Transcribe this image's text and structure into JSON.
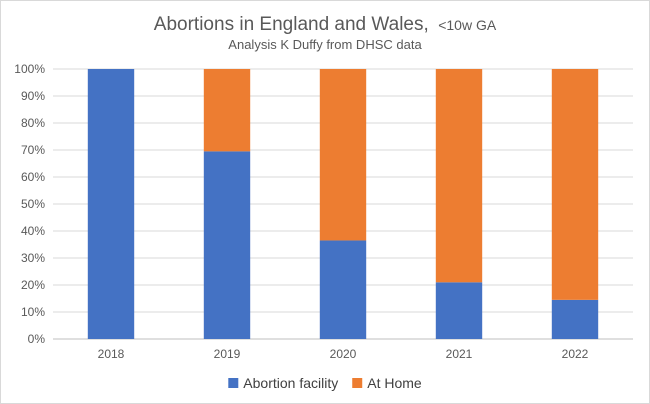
{
  "chart_data": {
    "type": "bar",
    "stacked": true,
    "title": "Abortions in England and Wales,",
    "title_suffix": "<10w GA",
    "subtitle": "Analysis K Duffy from DHSC data",
    "categories": [
      "2018",
      "2019",
      "2020",
      "2021",
      "2022"
    ],
    "series": [
      {
        "name": "Abortion facility",
        "color": "#4472c4",
        "values": [
          100,
          69.5,
          36.5,
          21,
          14.5
        ]
      },
      {
        "name": "At Home",
        "color": "#ed7d31",
        "values": [
          0,
          30.5,
          63.5,
          79,
          85.5
        ]
      }
    ],
    "ylim": [
      0,
      100
    ],
    "ytick_values": [
      0,
      10,
      20,
      30,
      40,
      50,
      60,
      70,
      80,
      90,
      100
    ],
    "ytick_labels": [
      "0%",
      "10%",
      "20%",
      "30%",
      "40%",
      "50%",
      "60%",
      "70%",
      "80%",
      "90%",
      "100%"
    ],
    "grid": true,
    "legend_position": "bottom"
  }
}
